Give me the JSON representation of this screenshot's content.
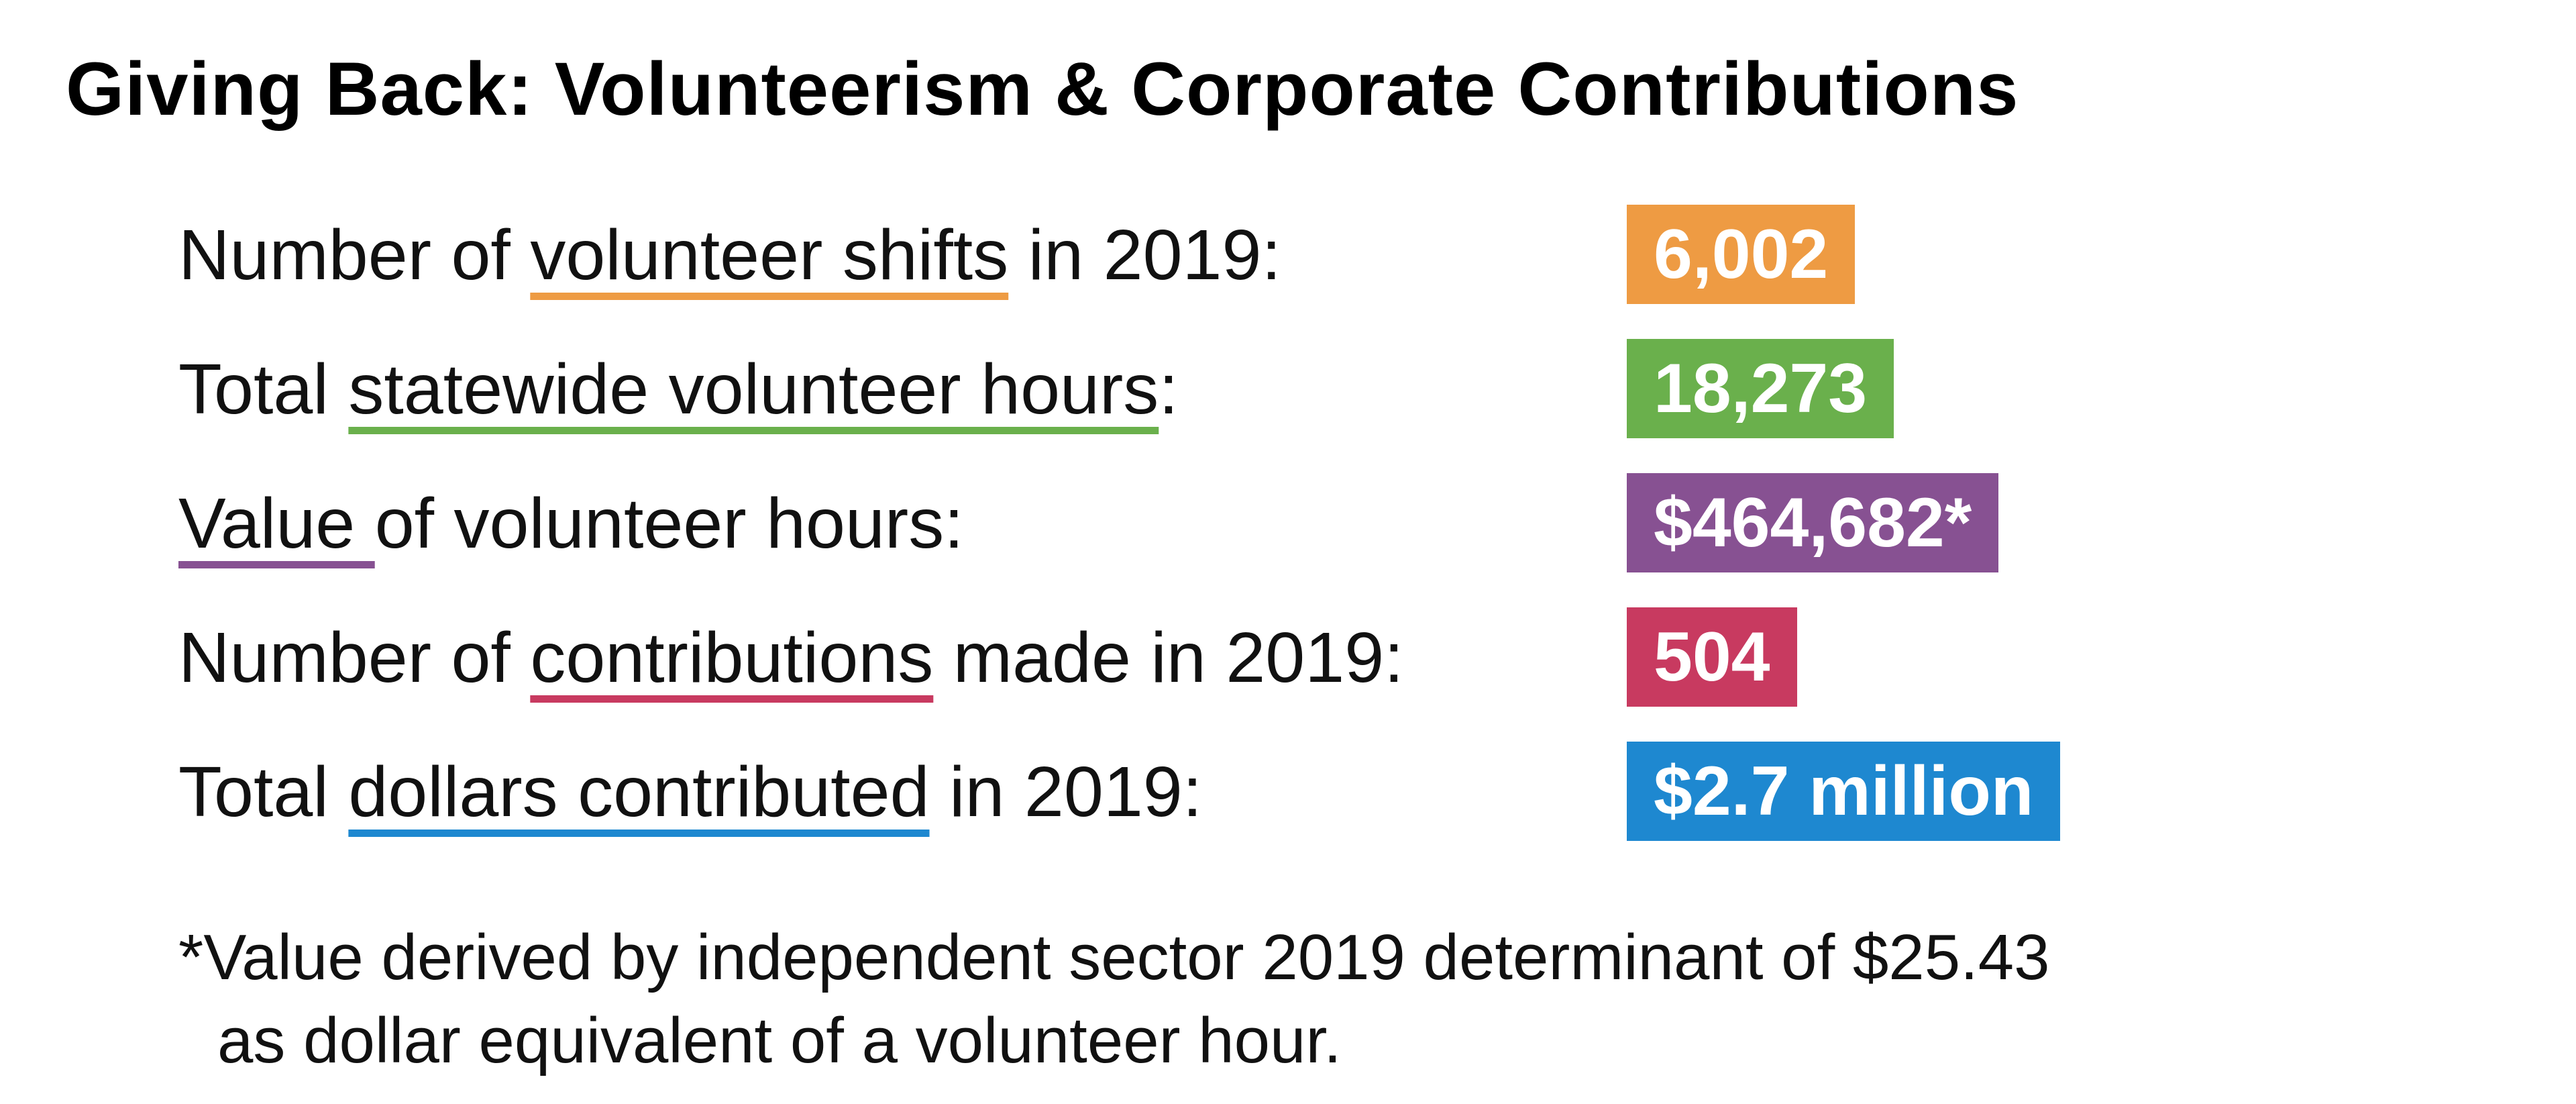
{
  "title": "Giving Back: Volunteerism & Corporate Contributions",
  "stats": [
    {
      "before": "Number of ",
      "highlight": "volunteer shifts",
      "after": " in 2019:",
      "value": "6,002",
      "color": "#ee9b43"
    },
    {
      "before": "Total ",
      "highlight": "statewide volunteer hours",
      "after": ":",
      "value": "18,273",
      "color": "#6ab04c"
    },
    {
      "before": "",
      "highlight": "Value ",
      "after": "of volunteer hours:",
      "value": "$464,682*",
      "color": "#875192"
    },
    {
      "before": "Number of ",
      "highlight": "contributions",
      "after": " made in 2019:",
      "value": "504",
      "color": "#c83a60"
    },
    {
      "before": "Total ",
      "highlight": "dollars contributed",
      "after": " in 2019:",
      "value": "$2.7 million",
      "color": "#1e88d0"
    }
  ],
  "footnote": {
    "line1": "*Value derived by independent sector 2019 determinant of $25.43",
    "line2": "as dollar equivalent of a volunteer hour."
  }
}
